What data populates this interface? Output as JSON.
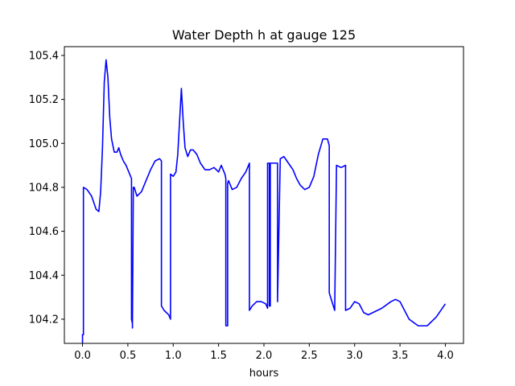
{
  "chart_data": {
    "type": "line",
    "title": "Water Depth h at gauge 125",
    "xlabel": "hours",
    "ylabel": "",
    "xlim": [
      -0.2,
      4.2
    ],
    "ylim": [
      104.09,
      105.44
    ],
    "xticks": [
      0.0,
      0.5,
      1.0,
      1.5,
      2.0,
      2.5,
      3.0,
      3.5,
      4.0
    ],
    "xtick_labels": [
      "0.0",
      "0.5",
      "1.0",
      "1.5",
      "2.0",
      "2.5",
      "3.0",
      "3.5",
      "4.0"
    ],
    "yticks": [
      104.2,
      104.4,
      104.6,
      104.8,
      105.0,
      105.2,
      105.4
    ],
    "ytick_labels": [
      "104.2",
      "104.4",
      "104.6",
      "104.8",
      "105.0",
      "105.2",
      "105.4"
    ],
    "grid": false,
    "series": [
      {
        "color": "#0000ff",
        "x": [
          0.0,
          0.0,
          0.01,
          0.01,
          0.05,
          0.1,
          0.15,
          0.18,
          0.2,
          0.22,
          0.24,
          0.26,
          0.28,
          0.3,
          0.32,
          0.35,
          0.38,
          0.4,
          0.42,
          0.45,
          0.48,
          0.52,
          0.54,
          0.54,
          0.55,
          0.55,
          0.56,
          0.57,
          0.6,
          0.65,
          0.7,
          0.75,
          0.8,
          0.85,
          0.87,
          0.87,
          0.9,
          0.95,
          0.97,
          0.97,
          1.0,
          1.03,
          1.05,
          1.07,
          1.09,
          1.11,
          1.13,
          1.16,
          1.19,
          1.22,
          1.26,
          1.3,
          1.35,
          1.4,
          1.45,
          1.5,
          1.53,
          1.57,
          1.58,
          1.58,
          1.6,
          1.6,
          1.61,
          1.62,
          1.65,
          1.7,
          1.75,
          1.8,
          1.84,
          1.84,
          1.87,
          1.92,
          1.97,
          2.02,
          2.04,
          2.04,
          2.06,
          2.06,
          2.07,
          2.07,
          2.15,
          2.15,
          2.18,
          2.22,
          2.27,
          2.32,
          2.36,
          2.4,
          2.45,
          2.5,
          2.55,
          2.6,
          2.65,
          2.7,
          2.72,
          2.72,
          2.78,
          2.78,
          2.8,
          2.85,
          2.9,
          2.9,
          2.95,
          3.0,
          3.05,
          3.1,
          3.15,
          3.2,
          3.3,
          3.4,
          3.45,
          3.5,
          3.6,
          3.7,
          3.8,
          3.9,
          4.0
        ],
        "y": [
          104.09,
          104.13,
          104.13,
          104.8,
          104.79,
          104.76,
          104.7,
          104.69,
          104.78,
          104.98,
          105.28,
          105.38,
          105.3,
          105.12,
          105.02,
          104.96,
          104.96,
          104.98,
          104.95,
          104.92,
          104.9,
          104.86,
          104.84,
          104.2,
          104.18,
          104.16,
          104.8,
          104.8,
          104.76,
          104.78,
          104.83,
          104.88,
          104.92,
          104.93,
          104.92,
          104.26,
          104.24,
          104.22,
          104.2,
          104.86,
          104.85,
          104.87,
          104.95,
          105.1,
          105.25,
          105.1,
          104.98,
          104.94,
          104.97,
          104.97,
          104.95,
          104.91,
          104.88,
          104.88,
          104.89,
          104.87,
          104.9,
          104.86,
          104.84,
          104.17,
          104.17,
          104.82,
          104.83,
          104.82,
          104.79,
          104.8,
          104.84,
          104.87,
          104.91,
          104.24,
          104.26,
          104.28,
          104.28,
          104.27,
          104.25,
          104.91,
          104.91,
          104.26,
          104.26,
          104.91,
          104.91,
          104.28,
          104.93,
          104.94,
          104.91,
          104.88,
          104.84,
          104.81,
          104.79,
          104.8,
          104.85,
          104.95,
          105.02,
          105.02,
          104.99,
          104.32,
          104.24,
          104.24,
          104.9,
          104.89,
          104.9,
          104.24,
          104.25,
          104.28,
          104.27,
          104.23,
          104.22,
          104.23,
          104.25,
          104.28,
          104.29,
          104.28,
          104.2,
          104.17,
          104.17,
          104.21,
          104.27
        ]
      }
    ]
  }
}
